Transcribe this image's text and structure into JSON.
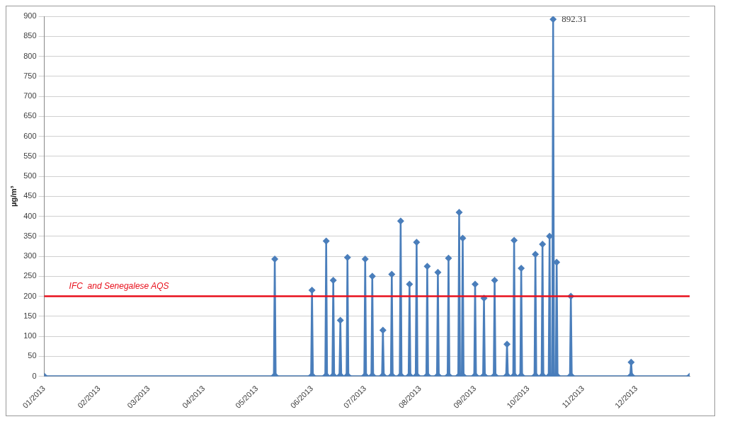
{
  "chart_data": {
    "type": "line",
    "ylabel": "µg/m³",
    "color": "#4a7ebb",
    "marker": "diamond",
    "line_style": "solid",
    "grid": "y",
    "legend": false,
    "xlim": [
      "2013-01-01",
      "2013-12-31"
    ],
    "xticks": [
      {
        "value": "2013-01-01",
        "label": "01/2013"
      },
      {
        "value": "2013-02-01",
        "label": "02/2013"
      },
      {
        "value": "2013-03-01",
        "label": "03/2013"
      },
      {
        "value": "2013-04-01",
        "label": "04/2013"
      },
      {
        "value": "2013-05-01",
        "label": "05/2013"
      },
      {
        "value": "2013-06-01",
        "label": "06/2013"
      },
      {
        "value": "2013-07-01",
        "label": "07/2013"
      },
      {
        "value": "2013-08-01",
        "label": "08/2013"
      },
      {
        "value": "2013-09-01",
        "label": "09/2013"
      },
      {
        "value": "2013-10-01",
        "label": "10/2013"
      },
      {
        "value": "2013-11-01",
        "label": "11/2013"
      },
      {
        "value": "2013-12-01",
        "label": "12/2013"
      }
    ],
    "ylim": [
      0,
      900
    ],
    "yticks": [
      0,
      50,
      100,
      150,
      200,
      250,
      300,
      350,
      400,
      450,
      500,
      550,
      600,
      650,
      700,
      750,
      800,
      850,
      900
    ],
    "x": [
      "2013-01-01T00:00",
      "2013-05-10T12:00",
      "2013-05-11T00:00",
      "2013-05-11T12:00",
      "2013-05-31T12:00",
      "2013-06-01T00:00",
      "2013-06-01T12:00",
      "2013-06-08T12:00",
      "2013-06-09T00:00",
      "2013-06-09T12:00",
      "2013-06-12T12:00",
      "2013-06-13T00:00",
      "2013-06-13T12:00",
      "2013-06-16T12:00",
      "2013-06-17T00:00",
      "2013-06-17T12:00",
      "2013-06-20T12:00",
      "2013-06-21T00:00",
      "2013-06-21T12:00",
      "2013-06-30T12:00",
      "2013-07-01T00:00",
      "2013-07-01T12:00",
      "2013-07-04T12:00",
      "2013-07-05T00:00",
      "2013-07-05T12:00",
      "2013-07-10T12:00",
      "2013-07-11T00:00",
      "2013-07-11T12:00",
      "2013-07-15T12:00",
      "2013-07-16T00:00",
      "2013-07-16T12:00",
      "2013-07-20T12:00",
      "2013-07-21T00:00",
      "2013-07-21T12:00",
      "2013-07-25T12:00",
      "2013-07-26T00:00",
      "2013-07-26T12:00",
      "2013-07-29T12:00",
      "2013-07-30T00:00",
      "2013-07-30T12:00",
      "2013-08-04T12:00",
      "2013-08-05T00:00",
      "2013-08-05T12:00",
      "2013-08-10T12:00",
      "2013-08-11T00:00",
      "2013-08-11T12:00",
      "2013-08-16T12:00",
      "2013-08-17T00:00",
      "2013-08-17T12:00",
      "2013-08-22T12:00",
      "2013-08-23T00:00",
      "2013-08-23T12:00",
      "2013-08-24T12:00",
      "2013-08-25T00:00",
      "2013-08-25T12:00",
      "2013-08-31T12:00",
      "2013-09-01T00:00",
      "2013-09-01T12:00",
      "2013-09-05T12:00",
      "2013-09-06T00:00",
      "2013-09-06T12:00",
      "2013-09-11T12:00",
      "2013-09-12T00:00",
      "2013-09-12T12:00",
      "2013-09-18T12:00",
      "2013-09-19T00:00",
      "2013-09-19T12:00",
      "2013-09-22T12:00",
      "2013-09-23T00:00",
      "2013-09-23T12:00",
      "2013-09-26T12:00",
      "2013-09-27T00:00",
      "2013-09-27T12:00",
      "2013-10-04T12:00",
      "2013-10-05T00:00",
      "2013-10-05T12:00",
      "2013-10-08T12:00",
      "2013-10-09T00:00",
      "2013-10-09T12:00",
      "2013-10-12T12:00",
      "2013-10-13T00:00",
      "2013-10-13T12:00",
      "2013-10-14T12:00",
      "2013-10-15T00:00",
      "2013-10-15T12:00",
      "2013-10-16T12:00",
      "2013-10-17T00:00",
      "2013-10-17T12:00",
      "2013-10-24T12:00",
      "2013-10-25T00:00",
      "2013-10-25T12:00",
      "2013-11-27T12:00",
      "2013-11-28T00:00",
      "2013-11-28T12:00",
      "2013-12-31T00:00"
    ],
    "values": [
      0,
      0,
      293,
      0,
      0,
      215,
      0,
      0,
      338,
      0,
      0,
      240,
      0,
      0,
      140,
      0,
      0,
      297,
      0,
      0,
      293,
      0,
      0,
      250,
      0,
      0,
      115,
      0,
      0,
      255,
      0,
      0,
      388,
      0,
      0,
      230,
      0,
      0,
      335,
      0,
      0,
      275,
      0,
      0,
      260,
      0,
      0,
      295,
      0,
      0,
      410,
      0,
      0,
      345,
      0,
      0,
      230,
      0,
      0,
      195,
      0,
      0,
      240,
      0,
      0,
      80,
      0,
      0,
      340,
      0,
      0,
      270,
      0,
      0,
      305,
      0,
      0,
      330,
      0,
      0,
      350,
      0,
      0,
      892.31,
      0,
      0,
      285,
      0,
      0,
      200,
      0,
      0,
      35,
      0,
      0
    ],
    "ref_lines": [
      {
        "axis": "y",
        "value": 200,
        "label": "IFC  and Senegalese AQS",
        "color": "#e8101c"
      }
    ],
    "annotations": [
      {
        "text": "892.31",
        "x": "2013-10-15T00:00",
        "y": 892.31
      }
    ]
  }
}
